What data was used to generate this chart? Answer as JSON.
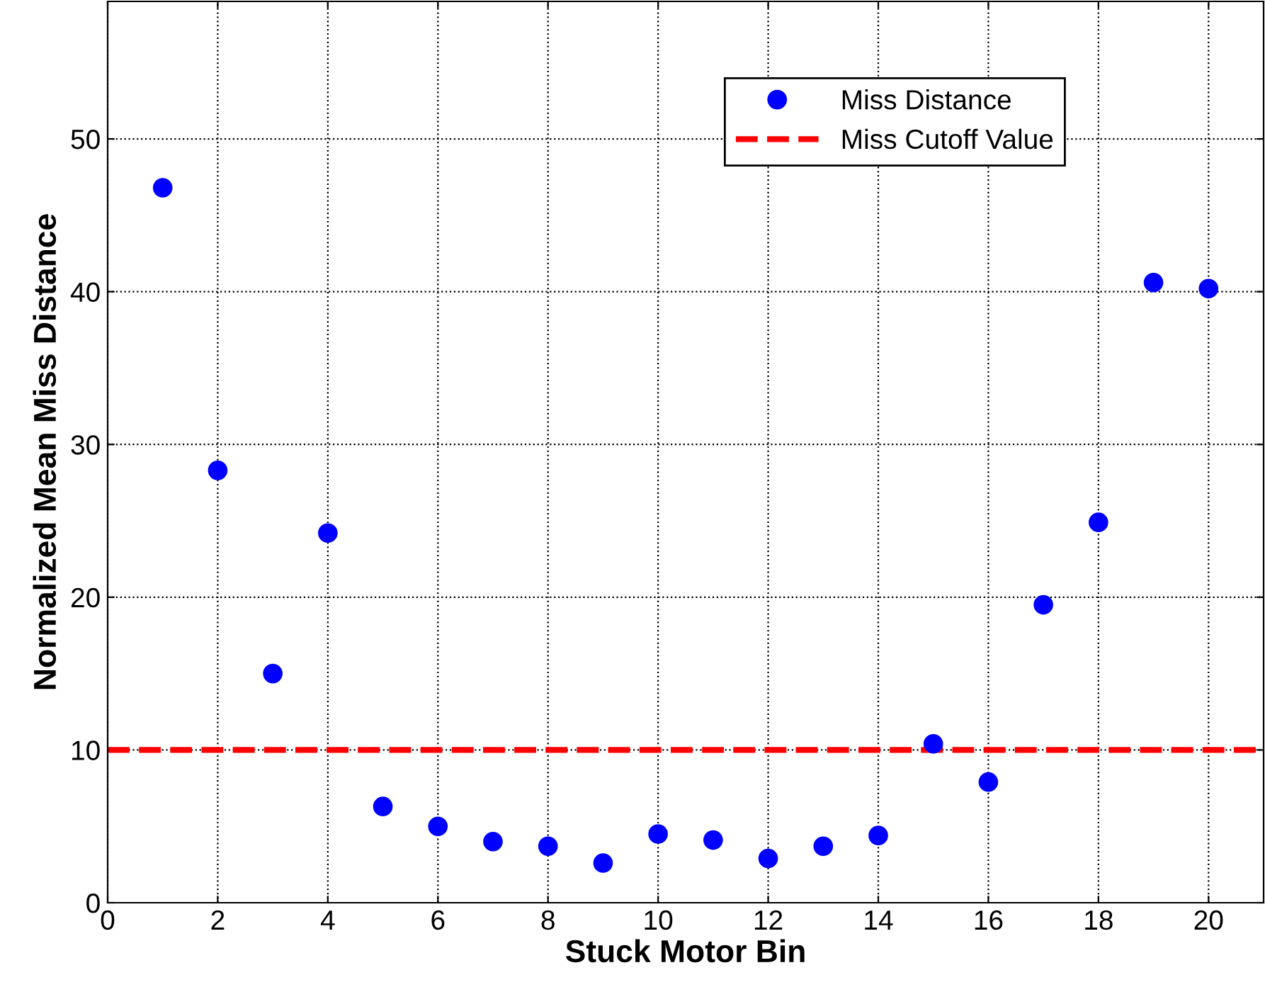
{
  "chart_data": {
    "type": "scatter",
    "xlabel": "Stuck Motor Bin",
    "ylabel": "Normalized Mean Miss Distance",
    "x": [
      1,
      2,
      3,
      4,
      5,
      6,
      7,
      8,
      9,
      10,
      11,
      12,
      13,
      14,
      15,
      16,
      17,
      18,
      19,
      20
    ],
    "series": [
      {
        "name": "Miss Distance",
        "color": "#0000ff",
        "values": [
          46.8,
          28.3,
          15.0,
          24.2,
          6.3,
          5.0,
          4.0,
          3.7,
          2.6,
          4.5,
          4.1,
          2.9,
          3.7,
          4.4,
          10.4,
          7.9,
          19.5,
          24.9,
          40.6,
          40.2
        ]
      }
    ],
    "ref_lines": [
      {
        "axis": "y",
        "value": 10,
        "label": "Miss Cutoff Value",
        "color": "#ff0000",
        "line_style": "dashed"
      }
    ],
    "xlim": [
      0,
      21
    ],
    "xticks": [
      0,
      2,
      4,
      6,
      8,
      10,
      12,
      14,
      16,
      18,
      20
    ],
    "ylim": [
      0,
      59
    ],
    "yticks": [
      0,
      10,
      20,
      30,
      40,
      50
    ],
    "grid": true,
    "legend": "top right",
    "marker": "circle"
  }
}
